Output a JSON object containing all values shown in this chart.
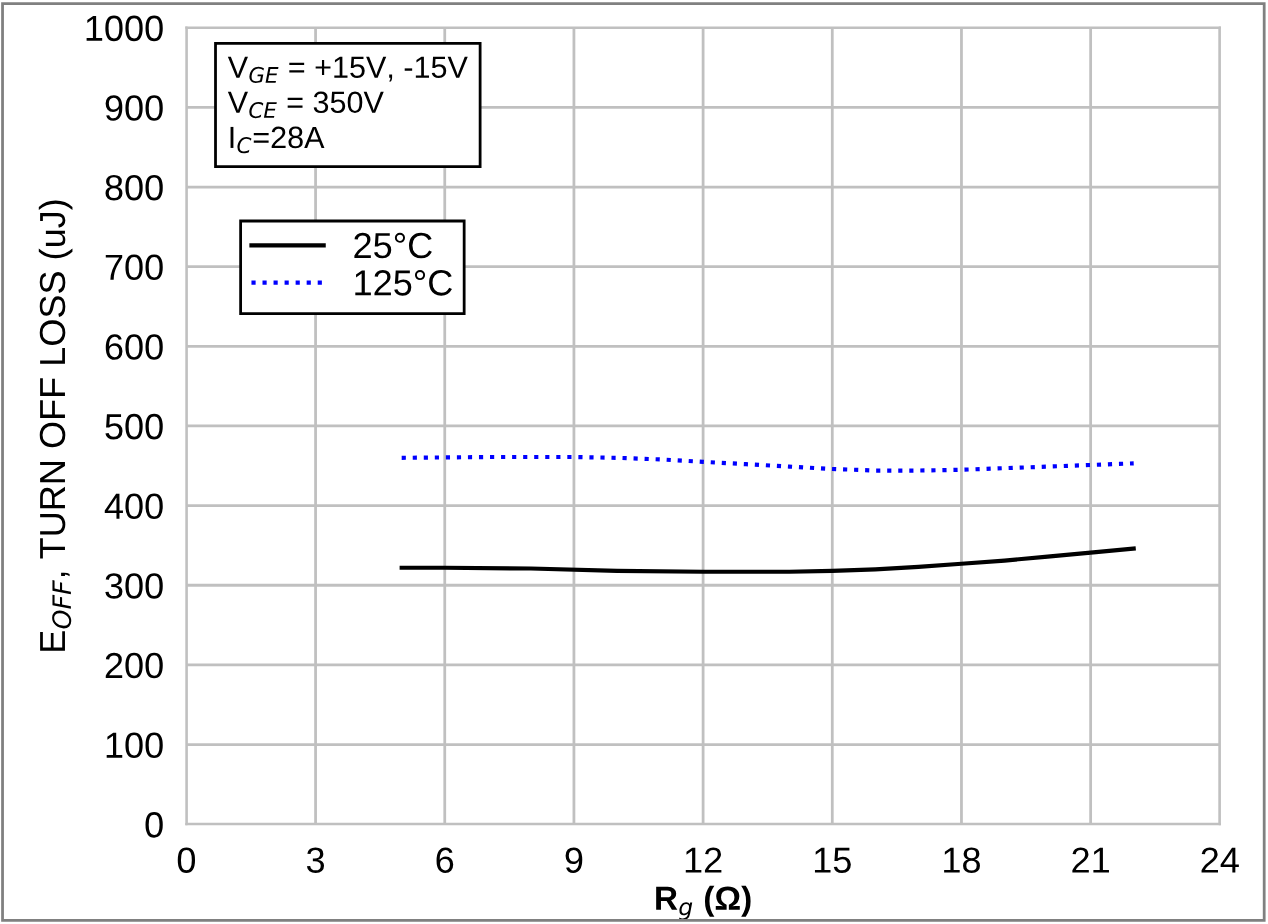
{
  "chart_data": {
    "type": "line",
    "xlabel": "R$_{g}$ (Ω)",
    "ylabel": "E$_{OFF}$, TURN OFF LOSS (uJ)",
    "annotations": [
      "V$_{GE}$ = +15V, -15V\nV$_{CE}$ = 350V\nI$_{C}$=28A"
    ],
    "series": [
      {
        "name": "25°C",
        "color": "#000000",
        "line_style": "solid",
        "x": [
          5,
          6,
          8,
          10,
          12,
          13,
          14,
          15,
          16,
          17,
          18,
          19,
          20,
          21,
          22
        ],
        "values": [
          322,
          322,
          321,
          318,
          317,
          317,
          317,
          318,
          320,
          323,
          327,
          331,
          336,
          341,
          346
        ]
      },
      {
        "name": "125°C",
        "color": "#0000ff",
        "line_style": "dotted",
        "x": [
          5,
          7,
          9,
          10,
          11,
          12,
          13,
          14,
          15,
          16,
          17,
          18,
          19,
          20,
          21,
          22
        ],
        "values": [
          460,
          461,
          461,
          460,
          458,
          455,
          452,
          449,
          446,
          444,
          444,
          445,
          447,
          449,
          451,
          453
        ]
      }
    ],
    "xlim": [
      0,
      24
    ],
    "xticks": [
      0,
      3,
      6,
      9,
      12,
      15,
      18,
      21,
      24
    ],
    "ylim": [
      0,
      1000
    ],
    "yticks": [
      0,
      100,
      200,
      300,
      400,
      500,
      600,
      700,
      800,
      900,
      1000
    ],
    "grid": true,
    "legend": "top left",
    "marker": "none"
  }
}
